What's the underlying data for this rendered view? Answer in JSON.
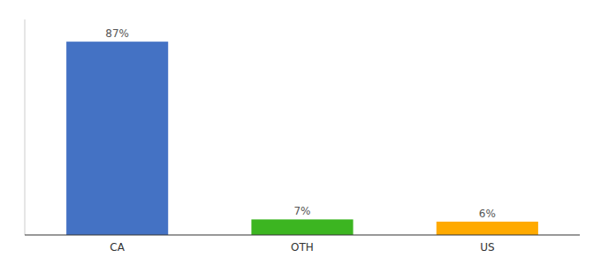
{
  "chart_data": {
    "type": "bar",
    "categories": [
      "CA",
      "OTH",
      "US"
    ],
    "values": [
      87,
      7,
      6
    ],
    "value_labels": [
      "87%",
      "7%",
      "6%"
    ],
    "data_labels": true,
    "colors": [
      "#4472c4",
      "#3cb521",
      "#ffaa00"
    ],
    "ylim": [
      0,
      97
    ],
    "grid": false,
    "tick_labels": "x"
  }
}
